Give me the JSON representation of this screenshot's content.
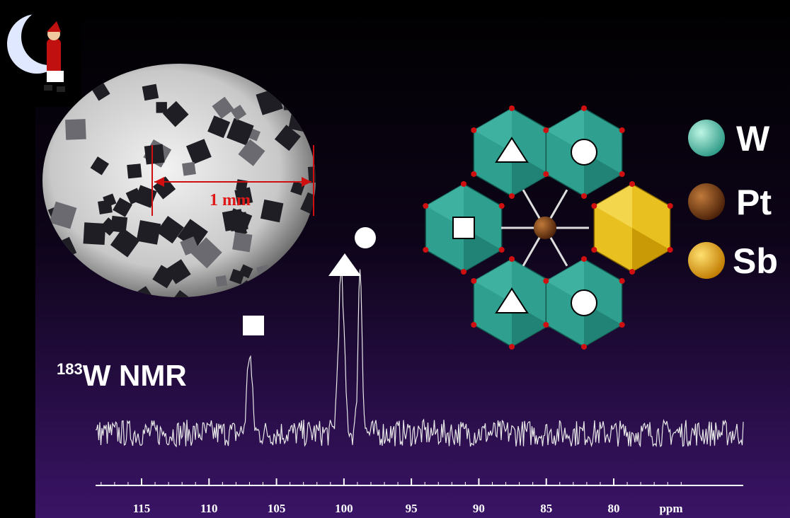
{
  "micrograph": {
    "scale_label": "1 mm"
  },
  "legend": {
    "items": [
      "W",
      "Pt",
      "Sb"
    ]
  },
  "spectrum": {
    "isotope": "183",
    "title": "W NMR",
    "axis": {
      "ticks": [
        115,
        110,
        105,
        100,
        95,
        90,
        85,
        80
      ],
      "unit": "ppm"
    }
  }
}
